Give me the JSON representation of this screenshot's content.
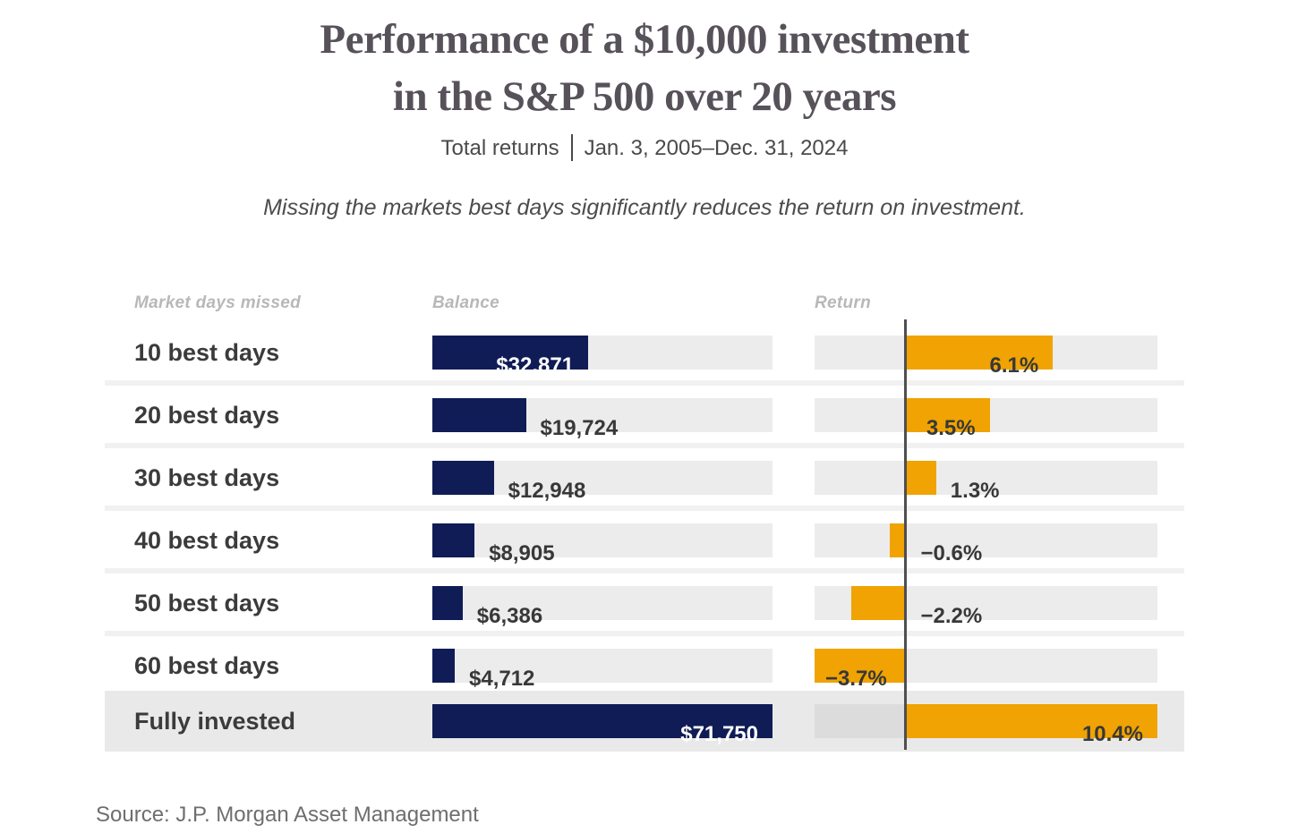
{
  "chart_data": {
    "type": "bar",
    "title": "Performance of a $10,000 investment in the S&P 500 over 20 years",
    "title_lines": [
      "Performance of a $10,000 investment",
      "in the S&P 500 over 20 years"
    ],
    "subtitle_prefix": "Total returns",
    "subtitle_dates": "Jan. 3, 2005–Dec. 31, 2024",
    "note": "Missing the markets best days significantly reduces the return on investment.",
    "columns": [
      "Market days missed",
      "Balance",
      "Return"
    ],
    "balance_axis": {
      "min": 0,
      "max": 71750
    },
    "return_axis": {
      "min": -3.7,
      "max": 10.4
    },
    "legend_position": "none",
    "grid": false,
    "rows": [
      {
        "label": "10 best days",
        "balance": 32871,
        "balance_label": "$32,871",
        "return_pct": 6.1,
        "return_label": "6.1%",
        "highlight": false
      },
      {
        "label": "20 best days",
        "balance": 19724,
        "balance_label": "$19,724",
        "return_pct": 3.5,
        "return_label": "3.5%",
        "highlight": false
      },
      {
        "label": "30 best days",
        "balance": 12948,
        "balance_label": "$12,948",
        "return_pct": 1.3,
        "return_label": "1.3%",
        "highlight": false
      },
      {
        "label": "40 best days",
        "balance": 8905,
        "balance_label": "$8,905",
        "return_pct": -0.6,
        "return_label": "−0.6%",
        "highlight": false
      },
      {
        "label": "50 best days",
        "balance": 6386,
        "balance_label": "$6,386",
        "return_pct": -2.2,
        "return_label": "−2.2%",
        "highlight": false
      },
      {
        "label": "60 best days",
        "balance": 4712,
        "balance_label": "$4,712",
        "return_pct": -3.7,
        "return_label": "−3.7%",
        "highlight": false
      },
      {
        "label": "Fully invested",
        "balance": 71750,
        "balance_label": "$71,750",
        "return_pct": 10.4,
        "return_label": "10.4%",
        "highlight": true
      }
    ],
    "source": "Source: J.P. Morgan Asset Management",
    "colors": {
      "navy": "#101c56",
      "orange": "#f0a302",
      "track": "#ececec",
      "highlight_band": "#e9e9e9",
      "highlight_track": "#dcdcdc",
      "zero_line": "#4f4f4f",
      "title_text": "#57515a",
      "label_text": "#3b3b3b",
      "value_text": "#383838"
    }
  }
}
